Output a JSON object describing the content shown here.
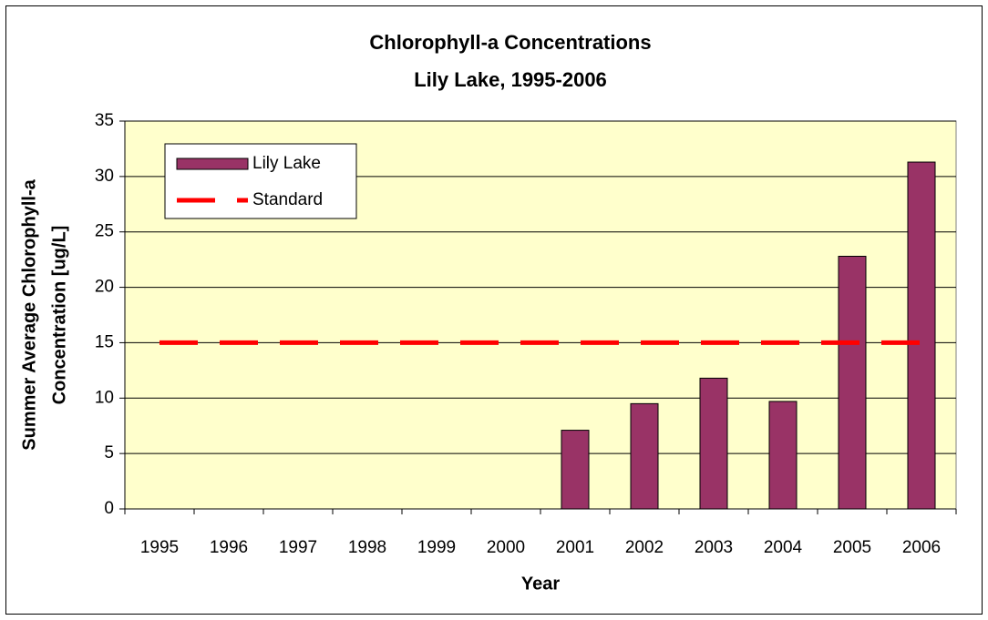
{
  "chart_data": {
    "type": "bar",
    "title": [
      "Chlorophyll-a Concentrations",
      "Lily Lake, 1995-2006"
    ],
    "xlabel": "Year",
    "ylabel": [
      "Summer Average Chlorophyll-a",
      "Concentration [ug/L]"
    ],
    "categories": [
      "1995",
      "1996",
      "1997",
      "1998",
      "1999",
      "2000",
      "2001",
      "2002",
      "2003",
      "2004",
      "2005",
      "2006"
    ],
    "series": [
      {
        "name": "Lily Lake",
        "type": "bar",
        "color": "#993366",
        "values": [
          null,
          null,
          null,
          null,
          null,
          null,
          7.1,
          9.5,
          11.8,
          9.7,
          22.8,
          31.3
        ]
      },
      {
        "name": "Standard",
        "type": "line",
        "color": "#ff0000",
        "values": [
          15,
          15,
          15,
          15,
          15,
          15,
          15,
          15,
          15,
          15,
          15,
          15
        ]
      }
    ],
    "ylim": [
      0,
      35
    ],
    "yticks": [
      0,
      5,
      10,
      15,
      20,
      25,
      30,
      35
    ],
    "grid": true,
    "legend": "top-left",
    "background": "#ffffcc"
  }
}
